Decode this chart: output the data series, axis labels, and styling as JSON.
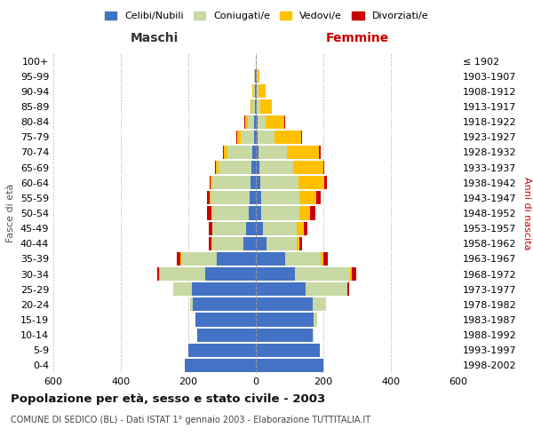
{
  "age_groups": [
    "0-4",
    "5-9",
    "10-14",
    "15-19",
    "20-24",
    "25-29",
    "30-34",
    "35-39",
    "40-44",
    "45-49",
    "50-54",
    "55-59",
    "60-64",
    "65-69",
    "70-74",
    "75-79",
    "80-84",
    "85-89",
    "90-94",
    "95-99",
    "100+"
  ],
  "birth_years": [
    "1998-2002",
    "1993-1997",
    "1988-1992",
    "1983-1987",
    "1978-1982",
    "1973-1977",
    "1968-1972",
    "1963-1967",
    "1958-1962",
    "1953-1957",
    "1948-1952",
    "1943-1947",
    "1938-1942",
    "1933-1937",
    "1928-1932",
    "1923-1927",
    "1918-1922",
    "1913-1917",
    "1908-1912",
    "1903-1907",
    "≤ 1902"
  ],
  "maschi": {
    "celibi": [
      210,
      200,
      175,
      178,
      188,
      190,
      150,
      115,
      38,
      28,
      20,
      18,
      15,
      12,
      10,
      6,
      4,
      3,
      3,
      2,
      0
    ],
    "coniugati": [
      0,
      0,
      0,
      2,
      8,
      55,
      135,
      105,
      92,
      100,
      110,
      115,
      115,
      98,
      75,
      40,
      20,
      8,
      5,
      3,
      0
    ],
    "vedovi": [
      0,
      0,
      0,
      0,
      0,
      0,
      3,
      3,
      2,
      2,
      2,
      3,
      5,
      8,
      10,
      10,
      8,
      5,
      3,
      0,
      0
    ],
    "divorziati": [
      0,
      0,
      0,
      0,
      0,
      0,
      5,
      10,
      8,
      10,
      12,
      8,
      3,
      2,
      2,
      2,
      2,
      0,
      0,
      0,
      0
    ]
  },
  "femmine": {
    "nubili": [
      200,
      190,
      168,
      172,
      168,
      148,
      115,
      88,
      32,
      22,
      15,
      15,
      12,
      10,
      8,
      5,
      4,
      3,
      3,
      2,
      0
    ],
    "coniugate": [
      0,
      0,
      2,
      10,
      40,
      122,
      165,
      105,
      88,
      100,
      115,
      115,
      115,
      100,
      85,
      50,
      25,
      10,
      5,
      3,
      0
    ],
    "vedove": [
      0,
      0,
      0,
      0,
      0,
      2,
      5,
      8,
      10,
      20,
      30,
      50,
      75,
      90,
      95,
      80,
      55,
      35,
      20,
      5,
      0
    ],
    "divorziate": [
      0,
      0,
      0,
      0,
      0,
      5,
      12,
      12,
      8,
      10,
      15,
      12,
      8,
      3,
      3,
      2,
      2,
      0,
      0,
      0,
      0
    ]
  },
  "colors": {
    "celibi": "#4472c4",
    "coniugati": "#c8d9a4",
    "vedovi": "#ffc000",
    "divorziati": "#cc0000"
  },
  "xlim": 600,
  "title": "Popolazione per età, sesso e stato civile - 2003",
  "subtitle": "COMUNE DI SEDICO (BL) - Dati ISTAT 1° gennaio 2003 - Elaborazione TUTTITALIA.IT",
  "xlabel_left": "Maschi",
  "xlabel_right": "Femmine",
  "ylabel_left": "Fasce di età",
  "ylabel_right": "Anni di nascita",
  "bg_color": "#ffffff",
  "grid_color": "#bbbbbb",
  "maschi_label_color": "#333333",
  "femmine_label_color": "#cc0000",
  "right_label_color": "#cc0000"
}
